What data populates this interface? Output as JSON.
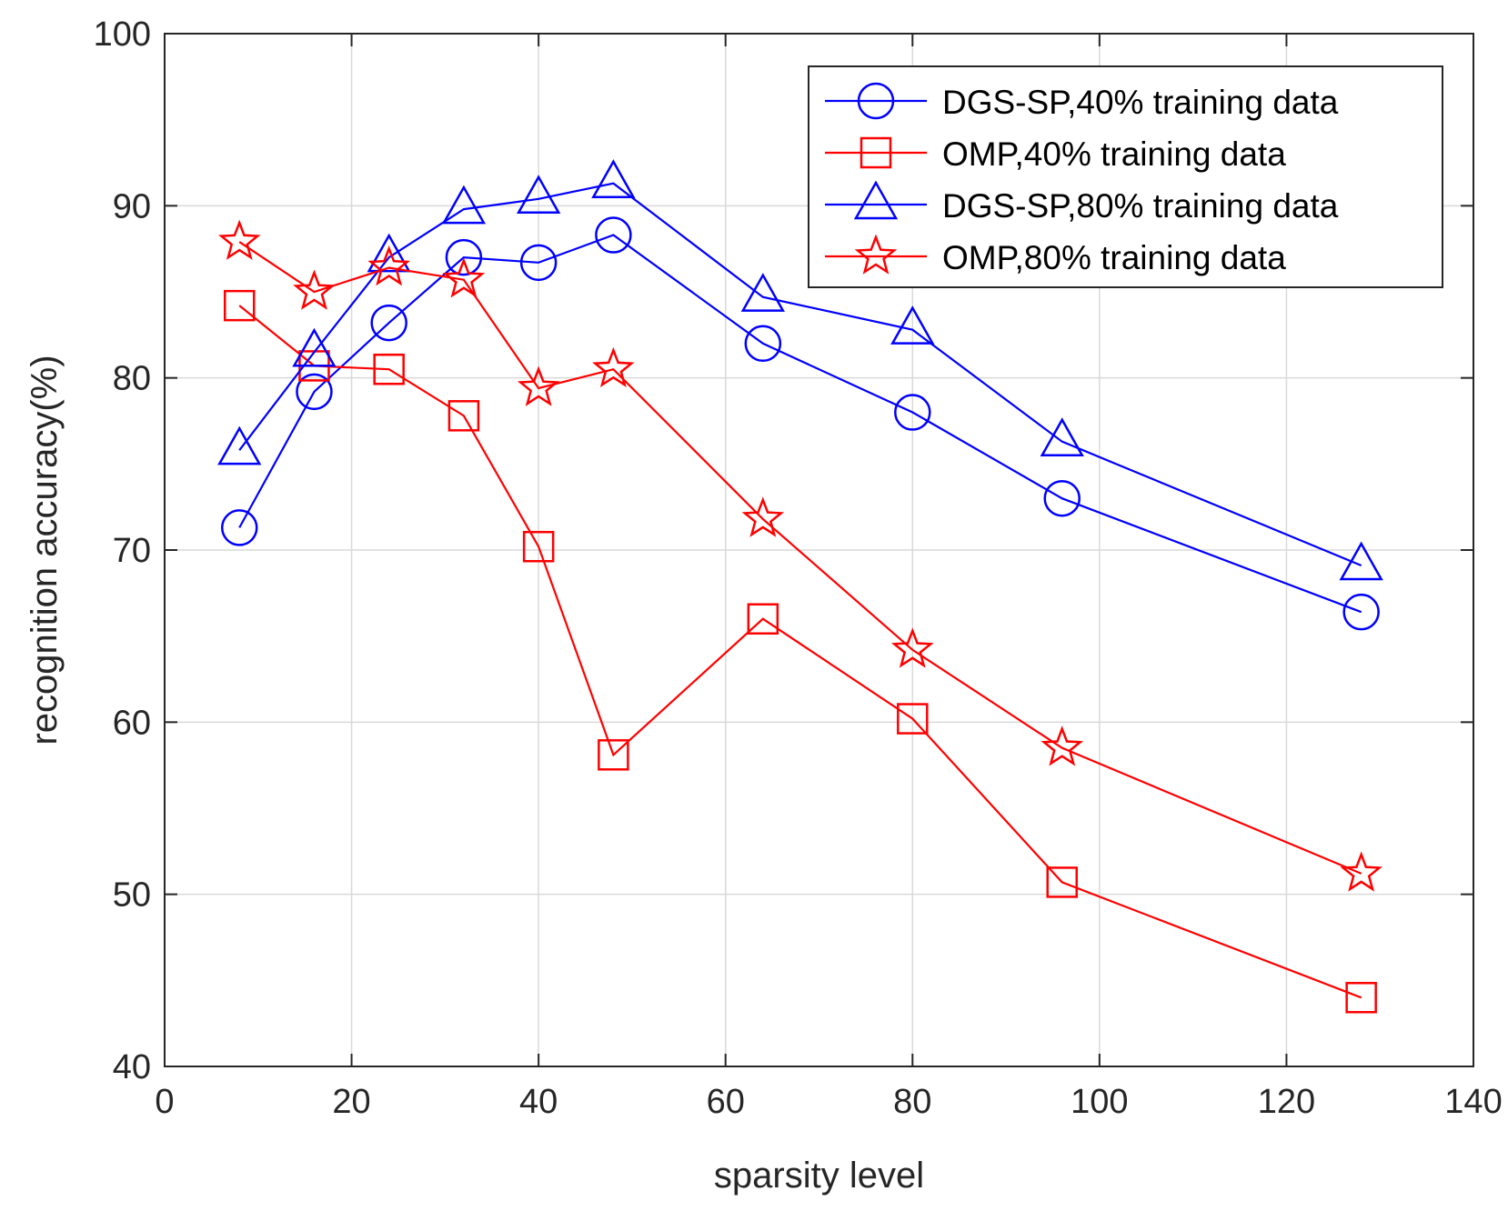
{
  "chart_data": {
    "type": "line",
    "title": "",
    "xlabel": "sparsity level",
    "ylabel": "recognition accuracy(%)",
    "xlim": [
      0,
      140
    ],
    "ylim": [
      40,
      100
    ],
    "xticks": [
      0,
      20,
      40,
      60,
      80,
      100,
      120,
      140
    ],
    "yticks": [
      40,
      50,
      60,
      70,
      80,
      90,
      100
    ],
    "grid": true,
    "legend_position": "top-right",
    "x": [
      8,
      16,
      24,
      32,
      40,
      48,
      64,
      80,
      96,
      128
    ],
    "series": [
      {
        "name": "DGS-SP,40% training data",
        "color": "#0000ff",
        "marker": "circle",
        "values": [
          71.3,
          79.2,
          83.2,
          87.0,
          86.7,
          88.3,
          82.0,
          78.0,
          73.0,
          66.4
        ]
      },
      {
        "name": "OMP,40% training data",
        "color": "#ff0000",
        "marker": "square",
        "values": [
          84.2,
          80.7,
          80.5,
          77.8,
          70.2,
          58.1,
          66.0,
          60.2,
          50.7,
          44.0
        ]
      },
      {
        "name": "DGS-SP,80% training data",
        "color": "#0000ff",
        "marker": "triangle",
        "values": [
          75.8,
          81.5,
          87.0,
          89.8,
          90.4,
          91.3,
          84.7,
          82.8,
          76.3,
          69.1
        ]
      },
      {
        "name": "OMP,80% training data",
        "color": "#ff0000",
        "marker": "star",
        "values": [
          87.9,
          85.0,
          86.4,
          85.7,
          79.4,
          80.5,
          71.8,
          64.2,
          58.5,
          51.2
        ]
      }
    ]
  }
}
